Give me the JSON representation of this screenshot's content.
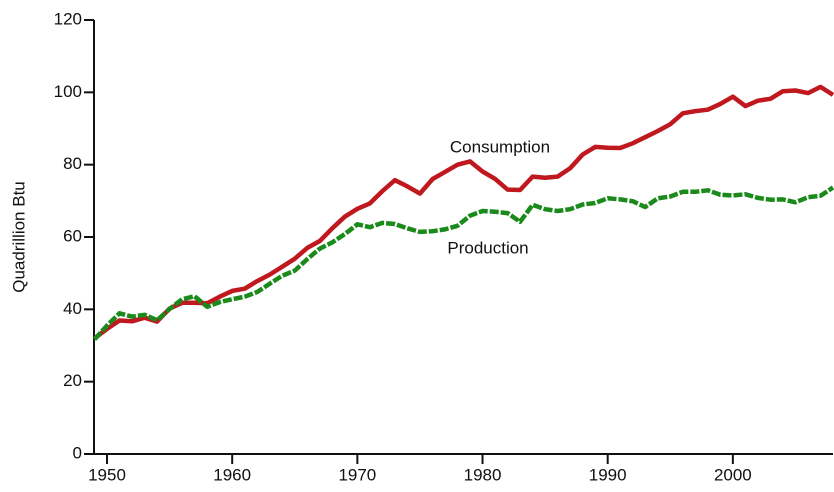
{
  "chart_data": {
    "type": "line",
    "y_label": "Quadrillion Btu",
    "annotations": [
      "Consumption",
      "Production"
    ],
    "x": [
      1949,
      1950,
      1951,
      1952,
      1953,
      1954,
      1955,
      1956,
      1957,
      1958,
      1959,
      1960,
      1961,
      1962,
      1963,
      1964,
      1965,
      1966,
      1967,
      1968,
      1969,
      1970,
      1971,
      1972,
      1973,
      1974,
      1975,
      1976,
      1977,
      1978,
      1979,
      1980,
      1981,
      1982,
      1983,
      1984,
      1985,
      1986,
      1987,
      1988,
      1989,
      1990,
      1991,
      1992,
      1993,
      1994,
      1995,
      1996,
      1997,
      1998,
      1999,
      2000,
      2001,
      2002,
      2003,
      2004,
      2005,
      2006,
      2007,
      2008
    ],
    "series": [
      {
        "name": "Consumption",
        "color": "#c0181f",
        "dashed": false,
        "values": [
          32.0,
          34.6,
          36.9,
          36.7,
          37.7,
          36.6,
          40.2,
          41.8,
          41.8,
          41.7,
          43.5,
          45.1,
          45.7,
          47.8,
          49.6,
          51.8,
          54.0,
          57.0,
          58.9,
          62.4,
          65.6,
          67.8,
          69.3,
          72.7,
          75.7,
          74.0,
          72.0,
          76.0,
          78.0,
          80.0,
          80.9,
          78.1,
          76.1,
          73.1,
          73.0,
          76.7,
          76.4,
          76.7,
          79.0,
          82.8,
          84.9,
          84.7,
          84.6,
          85.9,
          87.6,
          89.3,
          91.2,
          94.2,
          94.8,
          95.2,
          96.8,
          98.8,
          96.2,
          97.7,
          98.2,
          100.3,
          100.5,
          99.8,
          101.5,
          99.3
        ]
      },
      {
        "name": "Production",
        "color": "#1a8a1a",
        "dashed": true,
        "values": [
          31.7,
          35.5,
          38.9,
          38.0,
          38.5,
          37.0,
          40.1,
          42.8,
          43.6,
          40.7,
          42.0,
          42.8,
          43.5,
          44.8,
          47.1,
          49.3,
          50.7,
          53.9,
          56.8,
          58.5,
          60.8,
          63.5,
          62.7,
          63.9,
          63.6,
          62.4,
          61.4,
          61.6,
          62.1,
          63.1,
          65.9,
          67.2,
          67.0,
          66.6,
          64.2,
          68.9,
          67.7,
          67.2,
          67.7,
          69.0,
          69.4,
          70.7,
          70.4,
          69.9,
          68.3,
          70.7,
          71.2,
          72.5,
          72.5,
          72.9,
          71.7,
          71.5,
          71.8,
          70.8,
          70.3,
          70.4,
          69.6,
          71.0,
          71.4,
          73.7
        ]
      }
    ],
    "xlim": [
      1949,
      2008
    ],
    "xticks": [
      1950,
      1960,
      1970,
      1980,
      1990,
      2000
    ],
    "ylim": [
      0,
      120
    ],
    "yticks": [
      0,
      20,
      40,
      60,
      80,
      100,
      120
    ],
    "grid": false,
    "legend": false
  }
}
